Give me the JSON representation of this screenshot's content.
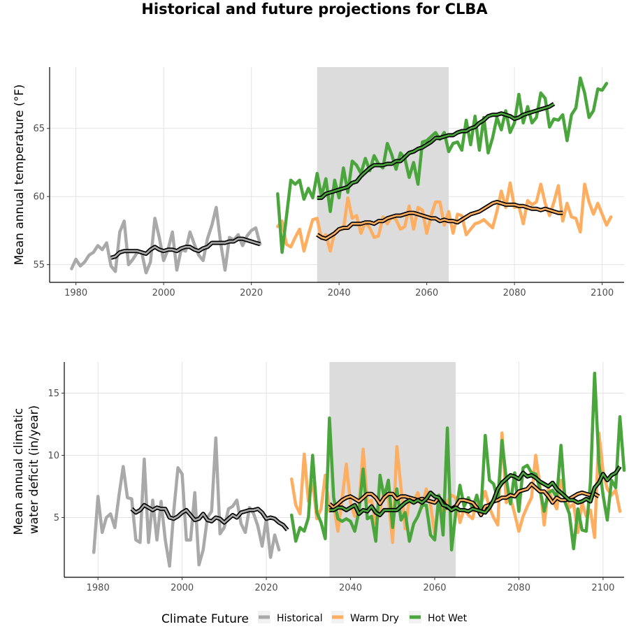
{
  "chart_data": {
    "type": "line",
    "title": "Historical and future projections for CLBA",
    "colors": {
      "Historical": "#a9a9a9",
      "Warm Dry": "#fdae61",
      "Hot Wet": "#4aa63c",
      "shading": "#dcdcdc",
      "rolling_mean": "#000000"
    },
    "legend": {
      "title": "Climate Future",
      "position": "bottom",
      "items": [
        "Historical",
        "Warm Dry",
        "Hot Wet"
      ]
    },
    "panels": [
      {
        "ylabel": "Mean annual temperature (°F)",
        "xlabel": "",
        "xlim": [
          1974,
          2105
        ],
        "ylim": [
          53.7,
          69.5
        ],
        "xticks": [
          1980,
          2000,
          2020,
          2040,
          2060,
          2080,
          2100
        ],
        "yticks": [
          55,
          60,
          65
        ],
        "shaded_period": [
          2035,
          2065
        ],
        "series": [
          {
            "name": "Historical",
            "x_start": 1979,
            "values": [
              54.7,
              55.4,
              54.9,
              55.2,
              55.7,
              55.9,
              56.4,
              56.1,
              56.6,
              54.9,
              54.5,
              57.4,
              58.2,
              55.0,
              55.4,
              55.9,
              55.9,
              54.4,
              55.2,
              58.4,
              57.0,
              55.3,
              56.1,
              57.4,
              54.6,
              56.1,
              56.0,
              57.4,
              56.5,
              55.7,
              55.3,
              56.9,
              57.9,
              59.2,
              56.6,
              54.6,
              57.0,
              56.8,
              57.2,
              56.4,
              57.1,
              57.5,
              57.7,
              56.5
            ]
          },
          {
            "name": "Warm Dry",
            "x_start": 2026,
            "values": [
              57.8,
              58.2,
              56.5,
              56.3,
              57.0,
              57.6,
              56.0,
              57.2,
              58.3,
              58.4,
              56.9,
              57.2,
              56.0,
              57.4,
              57.6,
              57.6,
              59.9,
              58.4,
              58.6,
              57.3,
              58.1,
              57.7,
              57.0,
              57.1,
              58.5,
              58.0,
              58.5,
              58.3,
              57.6,
              57.8,
              59.3,
              57.6,
              59.2,
              59.0,
              57.3,
              58.6,
              59.6,
              59.6,
              57.9,
              58.9,
              57.3,
              58.7,
              58.6,
              57.2,
              57.6,
              58.0,
              58.1,
              58.3,
              58.0,
              57.7,
              58.9,
              60.4,
              59.2,
              61.0,
              59.2,
              59.3,
              58.0,
              59.7,
              59.4,
              59.6,
              60.9,
              59.5,
              58.6,
              59.6,
              60.8,
              58.2,
              59.5,
              58.5,
              58.4,
              57.4,
              60.9,
              59.6,
              58.7,
              59.5,
              58.7,
              57.9,
              58.5
            ]
          },
          {
            "name": "Hot Wet",
            "x_start": 2026,
            "values": [
              60.2,
              55.9,
              58.5,
              61.2,
              60.9,
              61.2,
              59.8,
              60.6,
              59.9,
              61.7,
              60.0,
              61.3,
              58.9,
              61.2,
              59.9,
              62.1,
              60.3,
              62.6,
              62.3,
              61.7,
              62.8,
              61.9,
              63.0,
              62.4,
              62.1,
              63.9,
              63.1,
              62.0,
              63.2,
              62.8,
              61.4,
              62.5,
              60.9,
              64.0,
              64.1,
              64.4,
              64.7,
              64.2,
              64.7,
              63.3,
              63.9,
              64.0,
              63.4,
              65.6,
              63.8,
              65.9,
              63.4,
              65.8,
              63.2,
              64.3,
              65.8,
              64.9,
              66.3,
              64.7,
              65.4,
              67.5,
              65.4,
              66.6,
              65.4,
              65.8,
              67.6,
              67.2,
              65.1,
              65.7,
              65.6,
              66.0,
              64.1,
              66.0,
              66.5,
              68.7,
              67.6,
              65.8,
              66.3,
              67.9,
              67.8,
              68.3
            ]
          },
          {
            "name": "Historical 10-yr mean",
            "x_start": 1988,
            "values": [
              55.5,
              55.6,
              55.9,
              56.0,
              56.0,
              56.0,
              56.0,
              55.9,
              55.8,
              56.1,
              56.3,
              56.1,
              56.0,
              56.1,
              56.1,
              56.0,
              56.2,
              56.3,
              56.3,
              56.1,
              56.0,
              56.2,
              56.3,
              56.6,
              56.6,
              56.6,
              56.6,
              56.7,
              56.7,
              56.9,
              56.9,
              56.8,
              56.7,
              56.6,
              56.5
            ]
          },
          {
            "name": "Warm Dry 10-yr mean",
            "x_start": 2035,
            "values": [
              57.2,
              57.0,
              56.9,
              57.1,
              57.3,
              57.6,
              57.7,
              57.7,
              58.0,
              58.0,
              58.0,
              58.1,
              58.1,
              58.0,
              58.2,
              58.2,
              58.4,
              58.5,
              58.6,
              58.6,
              58.7,
              58.8,
              58.8,
              58.7,
              58.6,
              58.5,
              58.4,
              58.4,
              58.2,
              58.3,
              58.2,
              58.2,
              58.1,
              58.3,
              58.5,
              58.7,
              58.8,
              58.9,
              59.1,
              59.3,
              59.5,
              59.6,
              59.5,
              59.4,
              59.4,
              59.4,
              59.3,
              59.3,
              59.2,
              59.1,
              59.1,
              59.0,
              59.1,
              59.0,
              58.9,
              58.8,
              58.8
            ]
          },
          {
            "name": "Hot Wet 10-yr mean",
            "x_start": 2035,
            "values": [
              59.9,
              59.9,
              60.2,
              60.3,
              60.4,
              60.5,
              60.6,
              60.7,
              61.0,
              61.1,
              61.5,
              61.8,
              62.1,
              62.3,
              62.3,
              62.3,
              62.4,
              62.4,
              62.6,
              62.6,
              62.9,
              63.2,
              63.3,
              63.5,
              63.6,
              63.8,
              64.0,
              64.3,
              64.3,
              64.4,
              64.5,
              64.5,
              64.7,
              64.8,
              64.8,
              65.0,
              65.1,
              65.4,
              65.6,
              65.9,
              66.0,
              66.0,
              66.1,
              66.0,
              65.9,
              65.7,
              65.8,
              66.0,
              66.1,
              66.2,
              66.3,
              66.4,
              66.5,
              66.6,
              66.8
            ]
          }
        ]
      },
      {
        "ylabel": "Mean annual climatic water deficit (in/year)",
        "xlabel": "",
        "xlim": [
          1972,
          2105
        ],
        "ylim": [
          0.2,
          17.5
        ],
        "xticks": [
          1980,
          2000,
          2020,
          2040,
          2060,
          2080,
          2100
        ],
        "yticks": [
          5,
          10,
          15
        ],
        "shaded_period": [
          2035,
          2065
        ],
        "series": [
          {
            "name": "Historical",
            "x_start": 1979,
            "values": [
              2.2,
              6.7,
              3.8,
              5.0,
              5.3,
              4.2,
              6.8,
              9.1,
              6.6,
              6.5,
              3.2,
              3.0,
              9.7,
              3.0,
              6.4,
              3.2,
              6.3,
              3.2,
              1.1,
              5.5,
              9.0,
              8.5,
              3.2,
              3.2,
              7.0,
              1.2,
              2.4,
              5.0,
              5.5,
              11.4,
              3.7,
              4.2,
              5.7,
              5.9,
              6.4,
              4.5,
              3.8,
              5.8,
              5.3,
              4.3,
              2.7,
              4.9,
              1.8,
              3.6,
              2.4
            ]
          },
          {
            "name": "Warm Dry",
            "x_start": 2026,
            "values": [
              8.1,
              6.0,
              5.3,
              10.1,
              6.3,
              7.9,
              4.9,
              5.7,
              8.4,
              5.5,
              6.0,
              3.9,
              6.5,
              9.3,
              6.2,
              5.1,
              5.9,
              10.5,
              6.2,
              6.4,
              4.5,
              5.6,
              7.2,
              6.5,
              3.0,
              10.7,
              7.4,
              4.1,
              6.5,
              6.3,
              7.0,
              5.8,
              7.3,
              6.0,
              3.7,
              6.3,
              5.1,
              6.3,
              6.8,
              6.6,
              4.6,
              5.7,
              5.2,
              4.9,
              6.4,
              6.1,
              7.1,
              5.8,
              5.0,
              4.4,
              11.8,
              6.2,
              6.6,
              5.3,
              3.9,
              5.1,
              5.9,
              6.6,
              10.0,
              7.6,
              4.4,
              7.3,
              6.4,
              5.7,
              8.0,
              6.8,
              5.8,
              6.1,
              3.8,
              6.2,
              5.1,
              5.6,
              3.4,
              11.8,
              8.7,
              7.3,
              6.8,
              7.2,
              5.5
            ]
          },
          {
            "name": "Hot Wet",
            "x_start": 2026,
            "values": [
              5.2,
              3.1,
              4.2,
              3.9,
              5.0,
              10.0,
              5.4,
              4.6,
              3.3,
              13.0,
              6.6,
              4.9,
              4.7,
              4.9,
              4.7,
              3.9,
              5.5,
              8.9,
              4.9,
              5.1,
              3.1,
              8.4,
              6.6,
              8.0,
              4.2,
              7.3,
              4.8,
              5.4,
              3.1,
              4.5,
              5.1,
              6.0,
              6.0,
              3.6,
              3.2,
              6.8,
              3.6,
              12.2,
              2.4,
              5.4,
              7.6,
              5.9,
              6.6,
              5.7,
              6.8,
              5.5,
              11.6,
              8.0,
              7.7,
              6.4,
              11.2,
              8.1,
              6.1,
              8.6,
              5.5,
              9.0,
              9.2,
              8.6,
              8.5,
              7.3,
              5.5,
              7.0,
              7.2,
              6.6,
              10.8,
              6.2,
              5.3,
              2.5,
              5.7,
              4.0,
              3.9,
              7.8,
              16.6,
              9.4,
              6.8,
              4.8,
              8.0,
              7.4,
              13.1,
              8.8
            ]
          },
          {
            "name": "Historical 10-yr mean",
            "x_start": 1988,
            "values": [
              5.7,
              5.4,
              5.6,
              6.0,
              5.8,
              5.6,
              5.8,
              5.7,
              5.7,
              5.0,
              4.9,
              5.1,
              5.4,
              5.6,
              5.2,
              4.8,
              4.9,
              5.3,
              4.8,
              4.7,
              5.0,
              4.9,
              4.6,
              4.9,
              5.2,
              5.0,
              5.4,
              5.5,
              5.6,
              5.6,
              5.7,
              5.4,
              4.9,
              5.0,
              4.9,
              4.6,
              4.4,
              4.0
            ]
          },
          {
            "name": "Warm Dry 10-yr mean",
            "x_start": 2035,
            "values": [
              6.1,
              5.8,
              6.1,
              6.4,
              6.6,
              6.7,
              6.5,
              6.3,
              6.6,
              6.9,
              6.9,
              6.6,
              6.1,
              6.6,
              6.9,
              6.9,
              6.5,
              6.7,
              6.7,
              6.6,
              6.5,
              6.4,
              6.5,
              6.4,
              6.3,
              6.2,
              6.6,
              6.2,
              5.8,
              5.7,
              5.9,
              6.4,
              6.4,
              6.3,
              6.2,
              5.8,
              5.2,
              5.9,
              6.0,
              6.3,
              6.4,
              6.6,
              6.6,
              6.8,
              6.7,
              7.1,
              7.2,
              7.3,
              7.7,
              7.4,
              7.1,
              7.1,
              6.7,
              6.2,
              6.6,
              6.4,
              6.4,
              6.5,
              6.7,
              6.9,
              7.0,
              6.9,
              6.8,
              6.9,
              6.7
            ]
          },
          {
            "name": "Hot Wet 10-yr mean",
            "x_start": 2035,
            "values": [
              5.6,
              5.6,
              5.8,
              5.8,
              5.6,
              5.8,
              6.0,
              5.3,
              5.6,
              5.5,
              5.9,
              5.4,
              5.2,
              5.6,
              5.6,
              5.6,
              5.6,
              5.9,
              6.2,
              6.4,
              6.2,
              6.4,
              6.2,
              6.5,
              7.0,
              6.7,
              6.6,
              6.0,
              5.9,
              5.6,
              5.8,
              5.6,
              5.6,
              5.5,
              5.7,
              5.6,
              5.5,
              5.4,
              5.8,
              6.4,
              7.3,
              7.8,
              8.1,
              8.4,
              8.3,
              8.1,
              8.6,
              8.3,
              8.4,
              8.2,
              7.9,
              7.7,
              7.5,
              7.8,
              7.3,
              7.0,
              6.7,
              6.4,
              6.4,
              6.2,
              6.3,
              6.5,
              6.3,
              7.4,
              7.8,
              8.5,
              8.0,
              8.4,
              8.6,
              9.1
            ]
          }
        ]
      }
    ]
  }
}
